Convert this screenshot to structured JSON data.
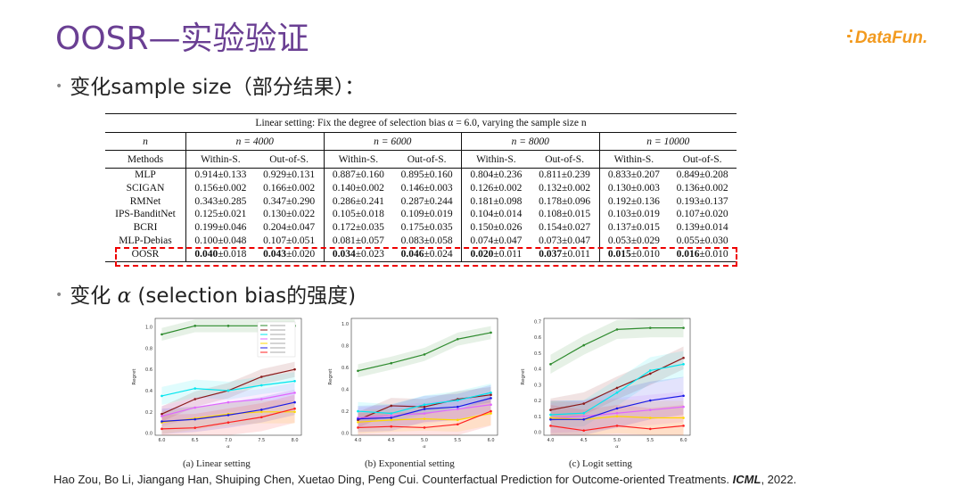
{
  "slide": {
    "title": "OOSR—实验验证",
    "logo_text": "DataFun.",
    "bullet1": "变化sample size（部分结果）：",
    "bullet2_prefix": "变化 ",
    "bullet2_alpha": "α",
    "bullet2_suffix": " (selection bias的强度)"
  },
  "table": {
    "caption": "Linear setting: Fix the degree of selection bias α = 6.0, varying the sample size n",
    "n_label": "n",
    "groups": [
      "n = 4000",
      "n = 6000",
      "n = 8000",
      "n = 10000"
    ],
    "methods_label": "Methods",
    "subheaders": [
      "Within-S.",
      "Out-of-S.",
      "Within-S.",
      "Out-of-S.",
      "Within-S.",
      "Out-of-S.",
      "Within-S.",
      "Out-of-S."
    ],
    "rows": [
      {
        "method": "MLP",
        "cells": [
          "0.914±0.133",
          "0.929±0.131",
          "0.887±0.160",
          "0.895±0.160",
          "0.804±0.236",
          "0.811±0.239",
          "0.833±0.207",
          "0.849±0.208"
        ]
      },
      {
        "method": "SCIGAN",
        "cells": [
          "0.156±0.002",
          "0.166±0.002",
          "0.140±0.002",
          "0.146±0.003",
          "0.126±0.002",
          "0.132±0.002",
          "0.130±0.003",
          "0.136±0.002"
        ]
      },
      {
        "method": "RMNet",
        "cells": [
          "0.343±0.285",
          "0.347±0.290",
          "0.286±0.241",
          "0.287±0.244",
          "0.181±0.098",
          "0.178±0.096",
          "0.192±0.136",
          "0.193±0.137"
        ]
      },
      {
        "method": "IPS-BanditNet",
        "cells": [
          "0.125±0.021",
          "0.130±0.022",
          "0.105±0.018",
          "0.109±0.019",
          "0.104±0.014",
          "0.108±0.015",
          "0.103±0.019",
          "0.107±0.020"
        ]
      },
      {
        "method": "BCRI",
        "cells": [
          "0.199±0.046",
          "0.204±0.047",
          "0.172±0.035",
          "0.175±0.035",
          "0.150±0.026",
          "0.154±0.027",
          "0.137±0.015",
          "0.139±0.014"
        ]
      },
      {
        "method": "MLP-Debias",
        "cells": [
          "0.100±0.048",
          "0.107±0.051",
          "0.081±0.057",
          "0.083±0.058",
          "0.074±0.047",
          "0.073±0.047",
          "0.053±0.029",
          "0.055±0.030"
        ]
      }
    ],
    "oosr": {
      "method": "OOSR",
      "means": [
        "0.040",
        "0.043",
        "0.034",
        "0.046",
        "0.020",
        "0.037",
        "0.015",
        "0.016"
      ],
      "stds": [
        "±0.018",
        "±0.020",
        "±0.023",
        "±0.024",
        "±0.011",
        "±0.011",
        "±0.010",
        "±0.010"
      ]
    }
  },
  "chart_data": [
    {
      "type": "line",
      "caption": "(a)  Linear setting",
      "xlabel": "α",
      "ylabel": "Regret",
      "x": [
        6.0,
        6.5,
        7.0,
        7.5,
        8.0
      ],
      "xticks": [
        "6.0",
        "6.5",
        "7.0",
        "7.5",
        "8.0"
      ],
      "yticks": [
        "0.0",
        "0.2",
        "0.4",
        "0.6",
        "0.8",
        "1.0"
      ],
      "ylim": [
        0,
        1.08
      ],
      "legend": "top-right",
      "series": [
        {
          "color": "#2e8b2e",
          "values": [
            0.93,
            1.01,
            1.01,
            1.01,
            1.01
          ]
        },
        {
          "color": "#8b1a1a",
          "values": [
            0.18,
            0.32,
            0.4,
            0.53,
            0.6
          ]
        },
        {
          "color": "#00e5ee",
          "values": [
            0.35,
            0.42,
            0.4,
            0.45,
            0.49
          ]
        },
        {
          "color": "#e066ff",
          "values": [
            0.16,
            0.24,
            0.29,
            0.32,
            0.38
          ]
        },
        {
          "color": "#ffd700",
          "values": [
            0.1,
            0.14,
            0.18,
            0.2,
            0.2
          ]
        },
        {
          "color": "#1a1ae6",
          "values": [
            0.11,
            0.13,
            0.17,
            0.22,
            0.29
          ]
        },
        {
          "color": "#ff2020",
          "values": [
            0.04,
            0.05,
            0.1,
            0.15,
            0.23
          ]
        }
      ]
    },
    {
      "type": "line",
      "caption": "(b)  Exponential setting",
      "xlabel": "α",
      "ylabel": "Regret",
      "x": [
        4.0,
        4.5,
        5.0,
        5.5,
        6.0
      ],
      "xticks": [
        "4.0",
        "4.5",
        "5.0",
        "5.5",
        "6.0"
      ],
      "yticks": [
        "0.0",
        "0.2",
        "0.4",
        "0.6",
        "0.8",
        "1.0"
      ],
      "ylim": [
        0,
        1.05
      ],
      "series": [
        {
          "color": "#2e8b2e",
          "values": [
            0.57,
            0.64,
            0.72,
            0.86,
            0.92
          ]
        },
        {
          "color": "#8b1a1a",
          "values": [
            0.12,
            0.25,
            0.24,
            0.31,
            0.35
          ]
        },
        {
          "color": "#00e5ee",
          "values": [
            0.2,
            0.18,
            0.26,
            0.3,
            0.37
          ]
        },
        {
          "color": "#e066ff",
          "values": [
            0.14,
            0.16,
            0.18,
            0.22,
            0.26
          ]
        },
        {
          "color": "#ffd700",
          "values": [
            0.1,
            0.12,
            0.13,
            0.12,
            0.18
          ]
        },
        {
          "color": "#1a1ae6",
          "values": [
            0.13,
            0.14,
            0.22,
            0.24,
            0.32
          ]
        },
        {
          "color": "#ff2020",
          "values": [
            0.05,
            0.06,
            0.05,
            0.08,
            0.2
          ]
        }
      ]
    },
    {
      "type": "line",
      "caption": "(c)  Logit setting",
      "xlabel": "α",
      "ylabel": "Regret",
      "x": [
        4.0,
        4.5,
        5.0,
        5.5,
        6.0
      ],
      "xticks": [
        "4.0",
        "4.5",
        "5.0",
        "5.5",
        "6.0"
      ],
      "yticks": [
        "0.0",
        "0.1",
        "0.2",
        "0.3",
        "0.4",
        "0.5",
        "0.6",
        "0.7"
      ],
      "ylim": [
        0,
        0.72
      ],
      "series": [
        {
          "color": "#2e8b2e",
          "values": [
            0.43,
            0.55,
            0.65,
            0.66,
            0.66
          ]
        },
        {
          "color": "#8b1a1a",
          "values": [
            0.14,
            0.18,
            0.28,
            0.37,
            0.47
          ]
        },
        {
          "color": "#00e5ee",
          "values": [
            0.11,
            0.12,
            0.25,
            0.39,
            0.43
          ]
        },
        {
          "color": "#e066ff",
          "values": [
            0.09,
            0.1,
            0.12,
            0.14,
            0.16
          ]
        },
        {
          "color": "#ffd700",
          "values": [
            0.09,
            0.08,
            0.1,
            0.09,
            0.09
          ]
        },
        {
          "color": "#1a1ae6",
          "values": [
            0.08,
            0.08,
            0.15,
            0.2,
            0.23
          ]
        },
        {
          "color": "#ff2020",
          "values": [
            0.04,
            0.01,
            0.04,
            0.02,
            0.04
          ]
        }
      ]
    }
  ],
  "reference": {
    "text_before": "Hao Zou, Bo Li, Jiangang Han, Shuiping Chen, Xuetao Ding, Peng Cui. Counterfactual Prediction for Outcome-oriented Treatments. ",
    "venue": "ICML",
    "text_after": ", 2022."
  }
}
